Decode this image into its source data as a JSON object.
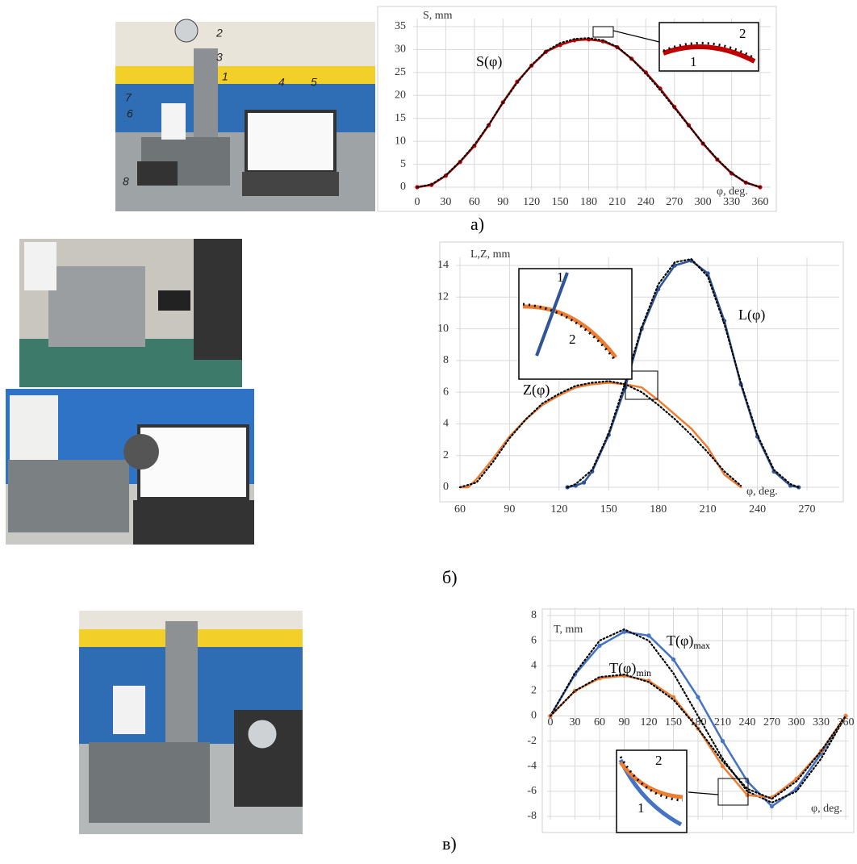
{
  "photo_labels": [
    "2",
    "3",
    "1",
    "4",
    "5",
    "7",
    "6",
    "8"
  ],
  "chart_data": [
    {
      "type": "line",
      "panel_label": "а)",
      "y_label": "S, mm",
      "x_label": "φ, deg.",
      "curve_labels": [
        {
          "text": "S(φ)"
        }
      ],
      "inset_labels": [
        "2",
        "1"
      ],
      "xlim": [
        0,
        360
      ],
      "xticks": [
        0,
        30,
        60,
        90,
        120,
        150,
        180,
        210,
        240,
        270,
        300,
        330,
        360
      ],
      "ylim": [
        0,
        35
      ],
      "yticks": [
        0,
        5,
        10,
        15,
        20,
        25,
        30,
        35
      ],
      "grid": true,
      "x": [
        0,
        15,
        30,
        45,
        60,
        75,
        90,
        105,
        120,
        135,
        150,
        165,
        180,
        195,
        210,
        225,
        240,
        255,
        270,
        285,
        300,
        315,
        330,
        345,
        360
      ],
      "series": [
        {
          "color": "#c00000",
          "style": "solid",
          "markers": true,
          "values": [
            0,
            0.5,
            2.5,
            5.5,
            9,
            13.5,
            18.5,
            23,
            26.5,
            29.5,
            31,
            32,
            32.2,
            31.8,
            30.5,
            28,
            25,
            21.5,
            17.5,
            13.5,
            9.5,
            6,
            3,
            1,
            0
          ]
        },
        {
          "color": "#000000",
          "style": "dotted",
          "markers": false,
          "values": [
            0,
            0.6,
            2.6,
            5.6,
            9.2,
            13.6,
            18.4,
            22.8,
            26.6,
            29.6,
            31.4,
            32.3,
            32.5,
            32,
            30.6,
            28,
            24.8,
            21.2,
            17.3,
            13.4,
            9.6,
            6.1,
            3.1,
            1,
            0
          ]
        }
      ]
    },
    {
      "type": "line",
      "panel_label": "б)",
      "y_label": "L,Z, mm",
      "x_label": "φ, deg.",
      "curve_labels": [
        {
          "text": "L(φ)"
        },
        {
          "text": "Z(φ)"
        }
      ],
      "inset_labels": [
        "1",
        "2"
      ],
      "xlim": [
        60,
        270
      ],
      "xticks": [
        60,
        90,
        120,
        150,
        180,
        210,
        240,
        270
      ],
      "ylim": [
        0,
        14
      ],
      "yticks": [
        0,
        2,
        4,
        6,
        8,
        10,
        12,
        14
      ],
      "grid": true,
      "series": [
        {
          "color": "#ed7d31",
          "style": "solid",
          "markers": false,
          "x": [
            60,
            65,
            70,
            80,
            90,
            100,
            110,
            120,
            130,
            140,
            150,
            160,
            170,
            180,
            190,
            200,
            210,
            220,
            230
          ],
          "values": [
            0,
            0,
            0.5,
            1.8,
            3.2,
            4.3,
            5.2,
            5.8,
            6.3,
            6.5,
            6.6,
            6.5,
            6.3,
            5.5,
            4.6,
            3.7,
            2.5,
            0.8,
            0
          ]
        },
        {
          "color": "#000000",
          "style": "dotted",
          "markers": false,
          "x": [
            60,
            70,
            80,
            90,
            100,
            110,
            120,
            130,
            140,
            150,
            160,
            170,
            180,
            190,
            200,
            210,
            220,
            230
          ],
          "values": [
            0,
            0.3,
            1.6,
            3.1,
            4.3,
            5.3,
            5.9,
            6.4,
            6.6,
            6.7,
            6.5,
            6,
            5.2,
            4.3,
            3.3,
            2.2,
            1,
            0.1
          ]
        },
        {
          "color": "#2f5597",
          "style": "solid",
          "markers": true,
          "x": [
            125,
            130,
            135,
            140,
            150,
            160,
            170,
            180,
            190,
            200,
            210,
            220,
            230,
            240,
            250,
            260,
            265
          ],
          "values": [
            0,
            0.1,
            0.3,
            1,
            3.3,
            6.3,
            10,
            12.5,
            14,
            14.3,
            13.5,
            10.5,
            6.5,
            3.2,
            1,
            0.1,
            0
          ]
        },
        {
          "color": "#000000",
          "style": "dotted",
          "markers": false,
          "x": [
            125,
            130,
            140,
            150,
            160,
            170,
            180,
            190,
            200,
            210,
            220,
            230,
            240,
            250,
            260,
            265
          ],
          "values": [
            0,
            0.2,
            1.1,
            3.4,
            6.6,
            10.1,
            12.8,
            14.2,
            14.4,
            13.3,
            10.3,
            6.6,
            3.3,
            1.1,
            0.2,
            0
          ]
        }
      ]
    },
    {
      "type": "line",
      "panel_label": "в)",
      "y_label": "T, mm",
      "x_label": "φ, deg.",
      "curve_labels": [
        {
          "text": "T(φ)",
          "sub": "max"
        },
        {
          "text": "T(φ)",
          "sub": "min"
        }
      ],
      "inset_labels": [
        "2",
        "1"
      ],
      "xlim": [
        0,
        360
      ],
      "xticks": [
        0,
        30,
        60,
        90,
        120,
        150,
        180,
        210,
        240,
        270,
        300,
        330,
        360
      ],
      "ylim": [
        -8,
        8
      ],
      "yticks": [
        -8,
        -6,
        -4,
        -2,
        0,
        2,
        4,
        6,
        8
      ],
      "grid": true,
      "x": [
        0,
        30,
        60,
        90,
        120,
        150,
        180,
        210,
        240,
        270,
        300,
        330,
        360
      ],
      "series": [
        {
          "color": "#4472c4",
          "style": "solid",
          "markers": true,
          "values": [
            0,
            3.3,
            5.6,
            6.7,
            6.4,
            4.5,
            1.5,
            -2,
            -5.2,
            -7.2,
            -5.8,
            -3,
            0
          ]
        },
        {
          "color": "#000000",
          "style": "dotted",
          "markers": false,
          "values": [
            0,
            3.4,
            6,
            6.9,
            6,
            3.4,
            0,
            -3.4,
            -6,
            -6.9,
            -6,
            -3.4,
            0
          ]
        },
        {
          "color": "#ed7d31",
          "style": "solid",
          "markers": true,
          "values": [
            0,
            2,
            3,
            3.2,
            2.8,
            1.5,
            -1,
            -4,
            -6.3,
            -6.5,
            -5,
            -2.8,
            0
          ]
        },
        {
          "color": "#000000",
          "style": "dotted",
          "markers": false,
          "values": [
            0,
            2,
            3.1,
            3.3,
            2.7,
            1.3,
            -1,
            -3.6,
            -5.8,
            -6.6,
            -5.2,
            -2.8,
            0
          ]
        }
      ]
    }
  ]
}
